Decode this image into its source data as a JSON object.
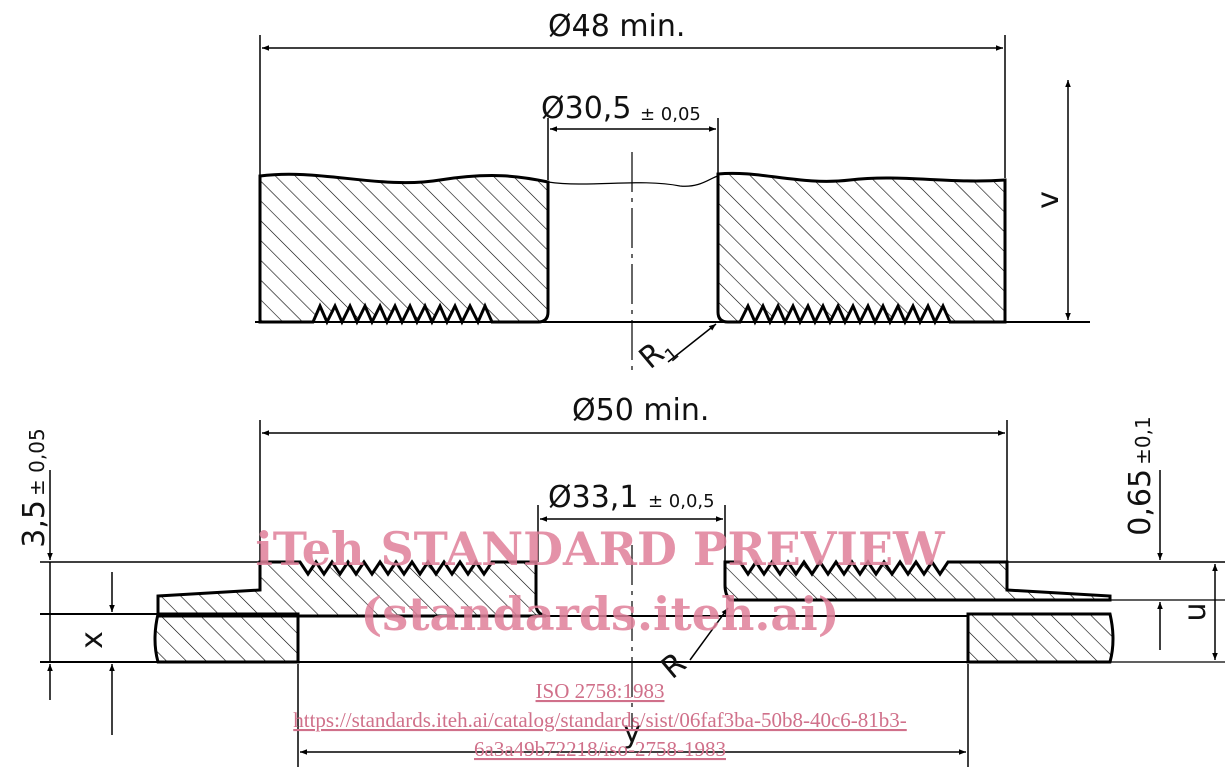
{
  "upper_part": {
    "dia_outer": {
      "symbol": "Ø",
      "value": "48 min."
    },
    "dia_bore": {
      "symbol": "Ø",
      "value": "30,5",
      "tolerance": "± 0,05"
    },
    "height_label": "v",
    "radius_label": {
      "letter": "R",
      "subscript": "1"
    }
  },
  "lower_part": {
    "dia_outer": {
      "symbol": "Ø",
      "value": "50 min."
    },
    "dia_bore": {
      "symbol": "Ø",
      "value": "33,1",
      "tolerance": "± 0,0,5"
    },
    "left_dim": {
      "value": "3,5",
      "tolerance": "± 0,05"
    },
    "right_dim": {
      "value": "0,65",
      "tolerance": "±0,1"
    },
    "height_x": "x",
    "height_u": "u",
    "radius_label": "R",
    "width_y": "y"
  },
  "watermark": {
    "title": "iTeh STANDARD PREVIEW",
    "subtitle": "(standards.iteh.ai)",
    "standard": "ISO 2758:1983",
    "url_line1": "https://standards.iteh.ai/catalog/standards/sist/06faf3ba-50b8-40c6-81b3-",
    "url_line2": "6a3a49b72218/iso-2758-1983"
  }
}
